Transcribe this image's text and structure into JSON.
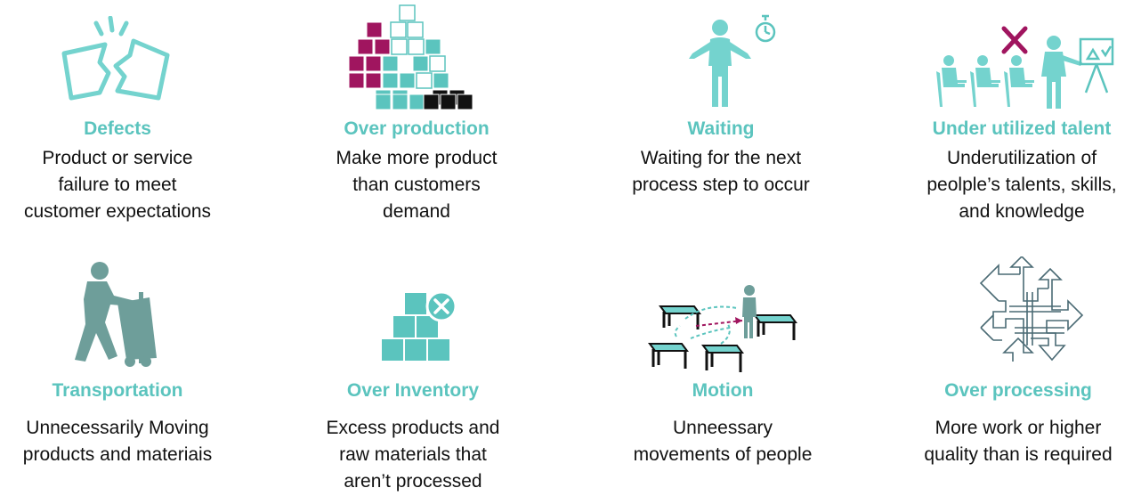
{
  "colors": {
    "teal": "#5bc4be",
    "magenta": "#a0155f",
    "black": "#111111"
  },
  "cards": [
    {
      "icon": "broken-square-icon",
      "title": "Defects",
      "lines": [
        "Product or service",
        "failure to meet",
        "customer expectations"
      ]
    },
    {
      "icon": "box-pyramid-icon",
      "title": "Over production",
      "lines": [
        "Make more product",
        "than customers",
        "demand"
      ]
    },
    {
      "icon": "waiting-person-stopwatch-icon",
      "title": "Waiting",
      "lines": [
        "Waiting for the next",
        "process step to occur"
      ]
    },
    {
      "icon": "classroom-presenter-icon",
      "title": "Under utilized talent",
      "lines": [
        "Underutilization of",
        "peolple’s talents, skills,",
        "and knowledge"
      ]
    },
    {
      "icon": "hand-truck-worker-icon",
      "title": "Transportation",
      "lines": [
        "Unnecessarily Moving",
        "products and materiais"
      ]
    },
    {
      "icon": "stacked-boxes-cancel-icon",
      "title": "Over Inventory",
      "lines": [
        "Excess products and",
        "raw materials that",
        "aren’t processed"
      ]
    },
    {
      "icon": "worker-tables-motion-icon",
      "title": "Motion",
      "lines": [
        "Unneessary",
        "movements of people"
      ]
    },
    {
      "icon": "tangled-arrows-icon",
      "title": "Over processing",
      "lines": [
        "More work or higher",
        "quality than is required"
      ]
    }
  ]
}
